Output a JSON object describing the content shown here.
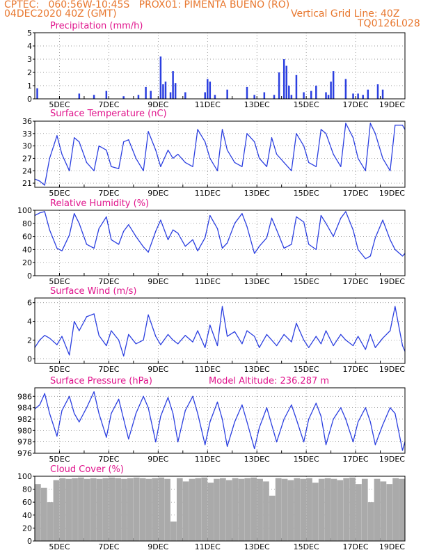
{
  "header": {
    "line1_left": "CPTEC:   060:56W-10:45S   PROX01: PIMENTA BUENO (RO)",
    "line2_left": "04DEC2020 40Z (GMT)",
    "line2_right": "Vertical Grid Line: 40Z",
    "line3_right": "TQ0126L028"
  },
  "colors": {
    "series": "#2b3fe0",
    "bars": "#2b3fe0",
    "cloud": "#aaaaaa",
    "title": "#e0148c",
    "header": "#e8772e"
  },
  "x_tick_labels": [
    "5DEC",
    "7DEC",
    "9DEC",
    "11DEC",
    "13DEC",
    "15DEC",
    "17DEC",
    "19DEC"
  ],
  "chart_data": [
    {
      "type": "bar",
      "title": "Precipitation (mm/h)",
      "x_unit": "day of December 2020",
      "xlim": [
        4.0,
        19.0
      ],
      "ylim": [
        0,
        5
      ],
      "yticks": [
        0,
        1,
        2,
        3,
        4,
        5
      ],
      "x": [
        4.1,
        5.8,
        6.4,
        6.9,
        7.6,
        8.2,
        8.5,
        8.7,
        9.1,
        9.2,
        9.3,
        9.5,
        9.6,
        9.7,
        10.1,
        10.9,
        11.0,
        11.1,
        11.3,
        11.8,
        12.6,
        12.9,
        13.3,
        13.7,
        13.9,
        14.1,
        14.2,
        14.3,
        14.4,
        14.6,
        14.9,
        15.2,
        15.4,
        15.8,
        15.9,
        16.0,
        16.1,
        16.6,
        16.9,
        17.1,
        17.3,
        17.5,
        17.9,
        18.1
      ],
      "values": [
        0.8,
        0.4,
        0.3,
        0.6,
        0.2,
        0.3,
        0.9,
        0.6,
        3.2,
        1.1,
        1.3,
        0.5,
        2.1,
        1.2,
        0.5,
        0.5,
        1.5,
        1.3,
        0.3,
        0.7,
        0.9,
        0.3,
        0.5,
        0.3,
        2.0,
        3.0,
        2.5,
        1.0,
        0.3,
        1.8,
        0.5,
        0.6,
        1.0,
        0.5,
        0.3,
        1.3,
        2.1,
        1.5,
        0.4,
        0.4,
        0.3,
        0.7,
        1.1,
        0.7
      ]
    },
    {
      "type": "line",
      "title": "Surface Temperature (nC)",
      "x_unit": "day of December 2020",
      "xlim": [
        4.0,
        19.0
      ],
      "ylim": [
        20,
        36
      ],
      "yticks": [
        21,
        24,
        27,
        30,
        33,
        36
      ],
      "x": [
        4.0,
        4.2,
        4.4,
        4.6,
        4.9,
        5.1,
        5.4,
        5.6,
        5.8,
        6.1,
        6.4,
        6.6,
        6.9,
        7.1,
        7.4,
        7.6,
        7.8,
        8.1,
        8.4,
        8.6,
        8.9,
        9.1,
        9.4,
        9.6,
        9.8,
        10.1,
        10.4,
        10.6,
        10.9,
        11.1,
        11.4,
        11.6,
        11.8,
        12.1,
        12.4,
        12.6,
        12.9,
        13.1,
        13.4,
        13.6,
        13.8,
        14.1,
        14.4,
        14.6,
        14.9,
        15.1,
        15.4,
        15.6,
        15.8,
        16.1,
        16.4,
        16.6,
        16.9,
        17.1,
        17.4,
        17.6,
        17.8,
        18.1,
        18.4,
        18.6,
        18.9,
        19.0
      ],
      "values": [
        22,
        21.5,
        20.5,
        27,
        32.5,
        28,
        24,
        32,
        31,
        26,
        24,
        30,
        29,
        25,
        24.5,
        31,
        31.5,
        27,
        24,
        33.5,
        29,
        25,
        29,
        27,
        28,
        26,
        25,
        34,
        31,
        27,
        24,
        34,
        29,
        26,
        25,
        33,
        31,
        27,
        25,
        32,
        28,
        26,
        24,
        33,
        30,
        26,
        25,
        34,
        33,
        28,
        25,
        35.5,
        32,
        27,
        24,
        35.5,
        33,
        27,
        24,
        35,
        35,
        34
      ]
    },
    {
      "type": "line",
      "title": "Relative Humidity (%)",
      "x_unit": "day of December 2020",
      "xlim": [
        4.0,
        19.0
      ],
      "ylim": [
        0,
        100
      ],
      "yticks": [
        0,
        20,
        40,
        60,
        80,
        100
      ],
      "x": [
        4.0,
        4.2,
        4.4,
        4.6,
        4.9,
        5.1,
        5.4,
        5.6,
        5.8,
        6.1,
        6.4,
        6.6,
        6.9,
        7.1,
        7.4,
        7.6,
        7.8,
        8.1,
        8.4,
        8.6,
        8.9,
        9.1,
        9.4,
        9.6,
        9.8,
        10.1,
        10.4,
        10.6,
        10.9,
        11.1,
        11.4,
        11.6,
        11.8,
        12.1,
        12.4,
        12.6,
        12.9,
        13.1,
        13.4,
        13.6,
        13.8,
        14.1,
        14.4,
        14.6,
        14.9,
        15.1,
        15.4,
        15.6,
        15.8,
        16.1,
        16.4,
        16.6,
        16.9,
        17.1,
        17.4,
        17.6,
        17.8,
        18.1,
        18.4,
        18.6,
        18.9,
        19.0
      ],
      "values": [
        92,
        96,
        98,
        70,
        42,
        38,
        62,
        95,
        80,
        48,
        42,
        72,
        90,
        55,
        48,
        68,
        78,
        60,
        44,
        36,
        68,
        85,
        55,
        70,
        65,
        45,
        55,
        38,
        58,
        92,
        72,
        42,
        50,
        80,
        95,
        75,
        34,
        45,
        58,
        88,
        70,
        42,
        48,
        90,
        82,
        48,
        40,
        92,
        80,
        60,
        88,
        98,
        70,
        40,
        26,
        30,
        58,
        85,
        55,
        40,
        30,
        34
      ]
    },
    {
      "type": "line",
      "title": "Surface Wind (m/s)",
      "x_unit": "day of December 2020",
      "xlim": [
        4.0,
        19.0
      ],
      "ylim": [
        -0.5,
        6.5
      ],
      "yticks": [
        0,
        2,
        4,
        6
      ],
      "x": [
        4.0,
        4.2,
        4.4,
        4.6,
        4.9,
        5.1,
        5.4,
        5.6,
        5.8,
        6.1,
        6.4,
        6.6,
        6.9,
        7.1,
        7.4,
        7.6,
        7.8,
        8.1,
        8.4,
        8.6,
        8.9,
        9.1,
        9.4,
        9.6,
        9.8,
        10.1,
        10.4,
        10.6,
        10.9,
        11.1,
        11.4,
        11.6,
        11.8,
        12.1,
        12.4,
        12.6,
        12.9,
        13.1,
        13.4,
        13.6,
        13.8,
        14.1,
        14.4,
        14.6,
        14.9,
        15.1,
        15.4,
        15.6,
        15.8,
        16.1,
        16.4,
        16.6,
        16.9,
        17.1,
        17.4,
        17.6,
        17.8,
        18.1,
        18.4,
        18.6,
        18.9,
        19.0
      ],
      "values": [
        1.2,
        2.0,
        2.5,
        2.2,
        1.5,
        2.4,
        0.4,
        4.0,
        3.0,
        4.5,
        4.8,
        2.5,
        1.4,
        3.0,
        2.0,
        0.3,
        2.6,
        1.6,
        2.0,
        4.7,
        2.4,
        1.5,
        2.6,
        2.0,
        1.6,
        2.5,
        1.8,
        3.0,
        1.2,
        3.6,
        1.4,
        5.6,
        2.4,
        2.9,
        1.6,
        3.0,
        2.4,
        1.2,
        2.6,
        2.0,
        1.4,
        2.6,
        1.8,
        3.8,
        2.0,
        1.2,
        2.4,
        1.6,
        3.0,
        1.4,
        2.6,
        2.0,
        1.4,
        2.4,
        1.0,
        2.6,
        1.2,
        2.2,
        3.0,
        5.6,
        1.4,
        0.8
      ]
    },
    {
      "type": "line",
      "title": "Surface Pressure (hPa)",
      "annotation": "Model Altitude: 236.287  m",
      "x_unit": "day of December 2020",
      "xlim": [
        4.0,
        19.0
      ],
      "ylim": [
        976,
        987.5
      ],
      "yticks": [
        976,
        978,
        980,
        982,
        984,
        986
      ],
      "x": [
        4.0,
        4.2,
        4.4,
        4.6,
        4.9,
        5.1,
        5.4,
        5.6,
        5.8,
        6.1,
        6.4,
        6.6,
        6.9,
        7.1,
        7.4,
        7.6,
        7.8,
        8.1,
        8.4,
        8.6,
        8.9,
        9.1,
        9.4,
        9.6,
        9.8,
        10.1,
        10.4,
        10.6,
        10.9,
        11.1,
        11.4,
        11.6,
        11.8,
        12.1,
        12.4,
        12.6,
        12.9,
        13.1,
        13.4,
        13.6,
        13.8,
        14.1,
        14.4,
        14.6,
        14.9,
        15.1,
        15.4,
        15.6,
        15.8,
        16.1,
        16.4,
        16.6,
        16.9,
        17.1,
        17.4,
        17.6,
        17.8,
        18.1,
        18.4,
        18.6,
        18.9,
        19.0
      ],
      "values": [
        983.8,
        984.5,
        986.5,
        983,
        979,
        983.5,
        986,
        983,
        981.5,
        984,
        986.8,
        983,
        978.8,
        983,
        985.5,
        982,
        978.5,
        983,
        986,
        984,
        978,
        982.5,
        985.8,
        983,
        978,
        983.5,
        986,
        983,
        977.5,
        981.5,
        985,
        982,
        977.2,
        981.5,
        984.5,
        981.5,
        976.8,
        980.5,
        984,
        981,
        978,
        982,
        984.5,
        982,
        978,
        982,
        984.8,
        982.5,
        977.5,
        982,
        984,
        982,
        978,
        981.5,
        984,
        981.5,
        977.5,
        981,
        984,
        983,
        976.5,
        978
      ]
    },
    {
      "type": "bar",
      "title": "Cloud Cover (%)",
      "x_unit": "day of December 2020",
      "xlim": [
        4.0,
        19.0
      ],
      "ylim": [
        0,
        100
      ],
      "yticks": [
        0,
        20,
        40,
        60,
        80,
        100
      ],
      "x": [
        4.0,
        4.25,
        4.5,
        4.75,
        5.0,
        5.25,
        5.5,
        5.75,
        6.0,
        6.25,
        6.5,
        6.75,
        7.0,
        7.25,
        7.5,
        7.75,
        8.0,
        8.25,
        8.5,
        8.75,
        9.0,
        9.25,
        9.5,
        9.75,
        10.0,
        10.25,
        10.5,
        10.75,
        11.0,
        11.25,
        11.5,
        11.75,
        12.0,
        12.25,
        12.5,
        12.75,
        13.0,
        13.25,
        13.5,
        13.75,
        14.0,
        14.25,
        14.5,
        14.75,
        15.0,
        15.25,
        15.5,
        15.75,
        16.0,
        16.25,
        16.5,
        16.75,
        17.0,
        17.25,
        17.5,
        17.75,
        18.0,
        18.25,
        18.5,
        18.75,
        19.0
      ],
      "values": [
        88,
        82,
        60,
        94,
        97,
        96,
        97,
        98,
        96,
        97,
        96,
        97,
        98,
        97,
        96,
        97,
        98,
        97,
        96,
        97,
        98,
        96,
        30,
        97,
        92,
        96,
        97,
        98,
        90,
        96,
        97,
        94,
        97,
        96,
        97,
        98,
        96,
        92,
        70,
        97,
        96,
        94,
        97,
        96,
        97,
        90,
        96,
        97,
        96,
        94,
        97,
        98,
        88,
        96,
        60,
        96,
        92,
        88,
        97,
        96,
        95
      ]
    }
  ]
}
